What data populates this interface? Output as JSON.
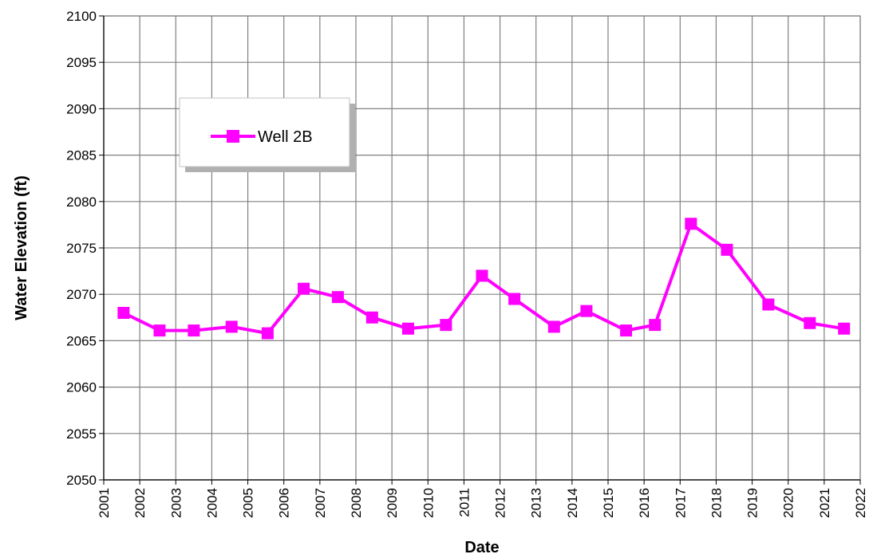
{
  "chart_data": {
    "type": "line",
    "xlabel": "Date",
    "ylabel": "Water Elevation (ft)",
    "xlim": [
      2001,
      2022
    ],
    "ylim": [
      2050,
      2100
    ],
    "x_ticks": [
      "2001",
      "2002",
      "2003",
      "2004",
      "2005",
      "2006",
      "2007",
      "2008",
      "2009",
      "2010",
      "2011",
      "2012",
      "2013",
      "2014",
      "2015",
      "2016",
      "2017",
      "2018",
      "2019",
      "2020",
      "2021",
      "2022"
    ],
    "y_ticks": [
      "2050",
      "2055",
      "2060",
      "2065",
      "2070",
      "2075",
      "2080",
      "2085",
      "2090",
      "2095",
      "2100"
    ],
    "grid": true,
    "legend_position": "upper-left",
    "series": [
      {
        "name": "Well 2B",
        "color": "#ff00ff",
        "marker": "square",
        "x": [
          2001.55,
          2002.55,
          2003.5,
          2004.55,
          2005.55,
          2006.55,
          2007.5,
          2008.45,
          2009.45,
          2010.5,
          2011.5,
          2012.4,
          2013.5,
          2014.4,
          2015.5,
          2016.3,
          2017.3,
          2018.3,
          2019.45,
          2020.6,
          2021.55
        ],
        "y": [
          2068.0,
          2066.1,
          2066.1,
          2066.5,
          2065.8,
          2070.6,
          2069.7,
          2067.5,
          2066.3,
          2066.7,
          2072.0,
          2069.5,
          2066.5,
          2068.2,
          2066.1,
          2066.7,
          2077.6,
          2074.8,
          2068.9,
          2066.9,
          2066.3
        ]
      }
    ]
  }
}
